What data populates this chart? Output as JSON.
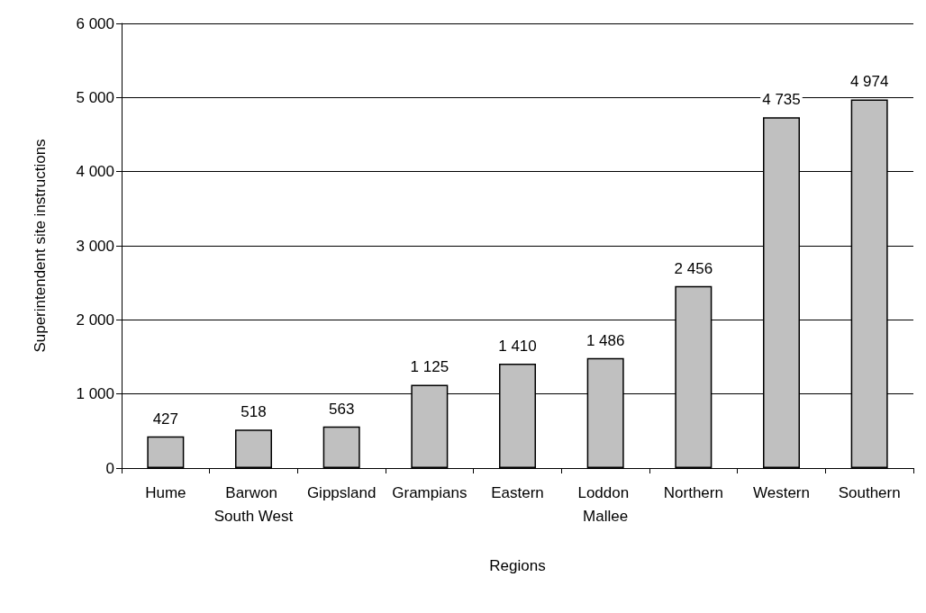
{
  "chart_data": {
    "type": "bar",
    "xlabel": "Regions",
    "ylabel": "Superintendent site instructions",
    "categories": [
      "Hume",
      "Barwon South West",
      "Gippsland",
      "Grampians",
      "Eastern",
      "Loddon Mallee",
      "Northern",
      "Western",
      "Southern"
    ],
    "values": [
      427,
      518,
      563,
      1125,
      1410,
      1486,
      2456,
      4735,
      4974
    ],
    "value_labels": [
      "427",
      "518",
      "563",
      "1 125",
      "1 410",
      "1 486",
      "2 456",
      "4 735",
      "4 974"
    ],
    "color": "#c0c0c0",
    "ylim": [
      0,
      6000
    ],
    "yticks": [
      {
        "value": 0,
        "label": "0"
      },
      {
        "value": 1000,
        "label": "1 000"
      },
      {
        "value": 2000,
        "label": "2 000"
      },
      {
        "value": 3000,
        "label": "3 000"
      },
      {
        "value": 4000,
        "label": "4 000"
      },
      {
        "value": 5000,
        "label": "5 000"
      },
      {
        "value": 6000,
        "label": "6 000"
      }
    ],
    "grid": "y"
  }
}
